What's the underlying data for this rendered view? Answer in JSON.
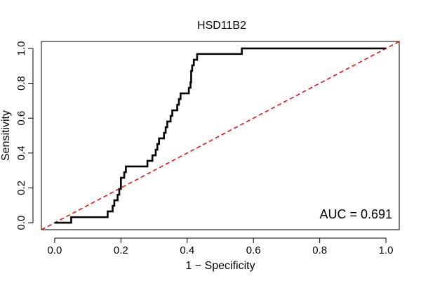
{
  "chart_data": {
    "type": "line",
    "title": "HSD11B2",
    "xlabel": "1 − Specificity",
    "ylabel": "Sensitivity",
    "xlim": [
      -0.04,
      1.04
    ],
    "ylim": [
      -0.04,
      1.04
    ],
    "x_ticks": [
      0.0,
      0.2,
      0.4,
      0.6,
      0.8,
      1.0
    ],
    "x_tick_labels": [
      "0.0",
      "0.2",
      "0.4",
      "0.6",
      "0.8",
      "1.0"
    ],
    "y_ticks": [
      0.0,
      0.2,
      0.4,
      0.6,
      0.8,
      1.0
    ],
    "y_tick_labels": [
      "0.0",
      "0.2",
      "0.4",
      "0.6",
      "0.8",
      "1.0"
    ],
    "grid": false,
    "annotation": "AUC = 0.691",
    "series": [
      {
        "name": "ROC",
        "color": "#000000",
        "style": "solid",
        "points": [
          [
            0.0,
            0.0
          ],
          [
            0.05,
            0.0
          ],
          [
            0.05,
            0.032
          ],
          [
            0.16,
            0.032
          ],
          [
            0.16,
            0.065
          ],
          [
            0.175,
            0.065
          ],
          [
            0.175,
            0.097
          ],
          [
            0.18,
            0.097
          ],
          [
            0.18,
            0.129
          ],
          [
            0.19,
            0.129
          ],
          [
            0.19,
            0.161
          ],
          [
            0.195,
            0.161
          ],
          [
            0.195,
            0.194
          ],
          [
            0.2,
            0.194
          ],
          [
            0.2,
            0.258
          ],
          [
            0.21,
            0.258
          ],
          [
            0.21,
            0.29
          ],
          [
            0.215,
            0.29
          ],
          [
            0.215,
            0.323
          ],
          [
            0.28,
            0.323
          ],
          [
            0.28,
            0.355
          ],
          [
            0.295,
            0.355
          ],
          [
            0.295,
            0.387
          ],
          [
            0.305,
            0.387
          ],
          [
            0.305,
            0.419
          ],
          [
            0.31,
            0.419
          ],
          [
            0.31,
            0.452
          ],
          [
            0.315,
            0.452
          ],
          [
            0.315,
            0.484
          ],
          [
            0.33,
            0.484
          ],
          [
            0.33,
            0.516
          ],
          [
            0.335,
            0.516
          ],
          [
            0.335,
            0.548
          ],
          [
            0.34,
            0.548
          ],
          [
            0.34,
            0.581
          ],
          [
            0.35,
            0.581
          ],
          [
            0.35,
            0.613
          ],
          [
            0.355,
            0.613
          ],
          [
            0.355,
            0.645
          ],
          [
            0.37,
            0.645
          ],
          [
            0.37,
            0.677
          ],
          [
            0.375,
            0.677
          ],
          [
            0.375,
            0.71
          ],
          [
            0.38,
            0.71
          ],
          [
            0.38,
            0.742
          ],
          [
            0.405,
            0.742
          ],
          [
            0.405,
            0.774
          ],
          [
            0.41,
            0.774
          ],
          [
            0.41,
            0.806
          ],
          [
            0.412,
            0.806
          ],
          [
            0.412,
            0.871
          ],
          [
            0.415,
            0.871
          ],
          [
            0.415,
            0.903
          ],
          [
            0.42,
            0.903
          ],
          [
            0.42,
            0.935
          ],
          [
            0.43,
            0.935
          ],
          [
            0.43,
            0.968
          ],
          [
            0.565,
            0.968
          ],
          [
            0.565,
            1.0
          ],
          [
            1.0,
            1.0
          ]
        ]
      },
      {
        "name": "Reference",
        "color": "#ff0000",
        "style": "dashed",
        "points": [
          [
            -0.04,
            -0.04
          ],
          [
            1.04,
            1.04
          ]
        ]
      }
    ]
  }
}
